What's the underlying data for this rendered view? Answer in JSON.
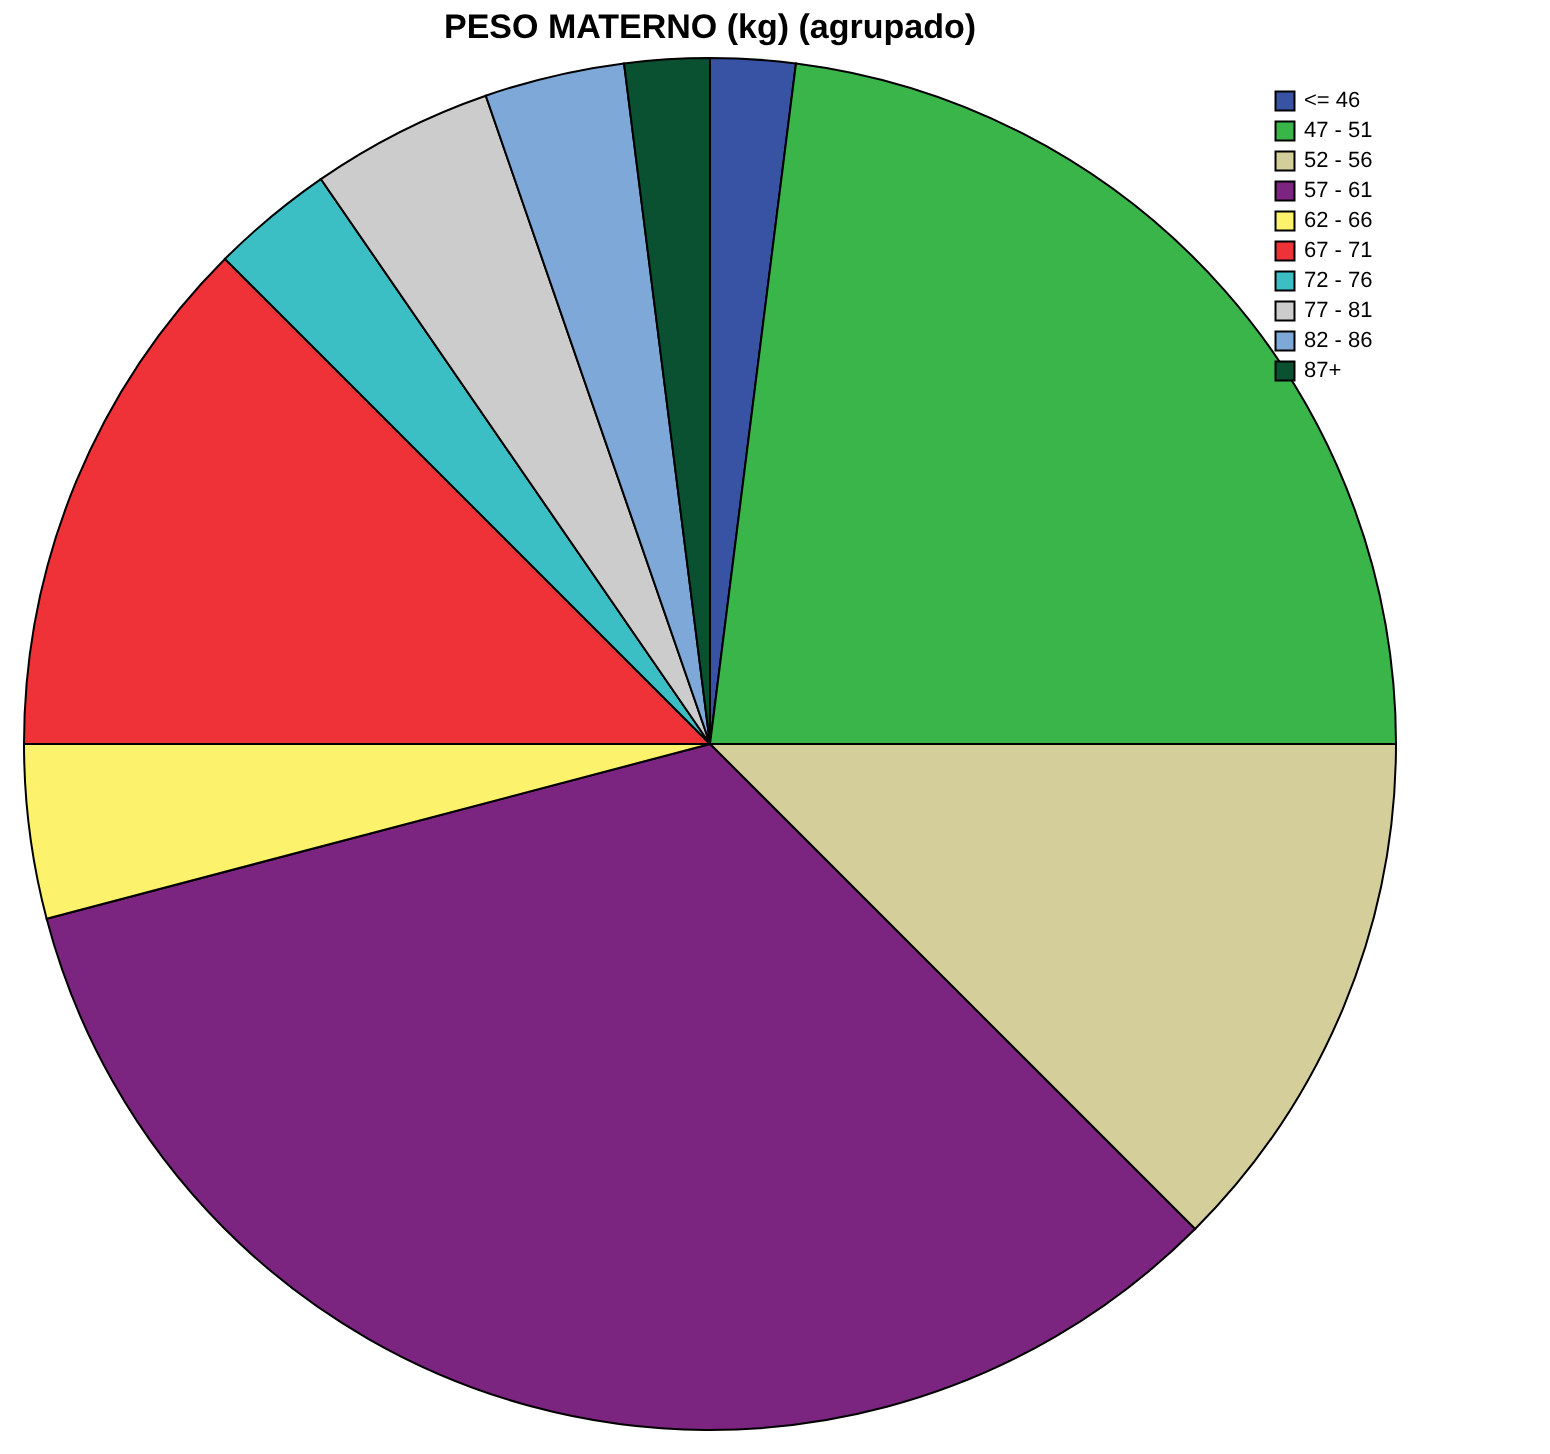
{
  "chart_data": {
    "type": "pie",
    "title": "PESO MATERNO (kg) (agrupado)",
    "categories": [
      "<= 46",
      "47 - 51",
      "52 - 56",
      "57 - 61",
      "62 - 66",
      "67 - 71",
      "72 - 76",
      "77 - 81",
      "82 - 86",
      "87+"
    ],
    "values": [
      2.0,
      23.0,
      12.5,
      33.4,
      4.1,
      12.5,
      2.9,
      4.3,
      3.3,
      2.0
    ],
    "colors": [
      "#3953a4",
      "#3ab54a",
      "#d3ce9a",
      "#7b2580",
      "#fcf26b",
      "#ee3237",
      "#3bbfc4",
      "#cccccc",
      "#7ea8d8",
      "#0a5131"
    ],
    "legend": "top right"
  }
}
